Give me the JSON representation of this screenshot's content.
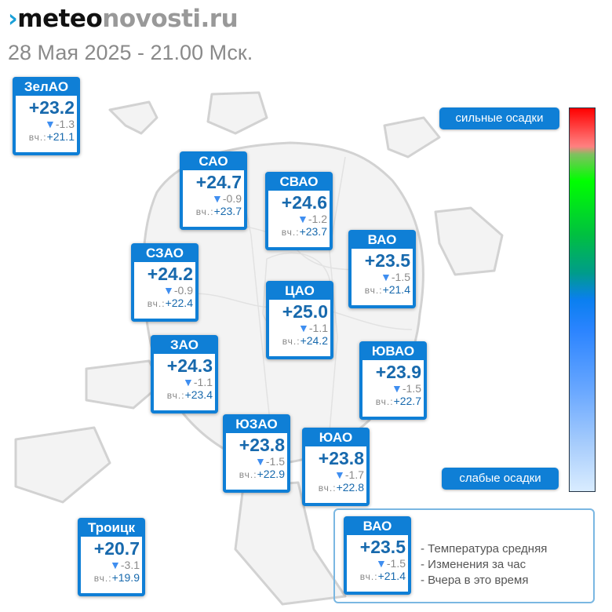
{
  "header": {
    "logo_mark": "›",
    "logo_part1": "meteo",
    "logo_part2": "novosti.ru",
    "date": "28 Мая 2025 - 21.00 Мск."
  },
  "yesterday_label": "вч.:",
  "down_arrow": "▼",
  "districts": [
    {
      "name": "ЗелАО",
      "temp": "+23.2",
      "change": "-1.3",
      "yesterday": "+21.1"
    },
    {
      "name": "САО",
      "temp": "+24.7",
      "change": "-0.9",
      "yesterday": "+23.7"
    },
    {
      "name": "СВАО",
      "temp": "+24.6",
      "change": "-1.2",
      "yesterday": "+23.7"
    },
    {
      "name": "ВАО",
      "temp": "+23.5",
      "change": "-1.5",
      "yesterday": "+21.4"
    },
    {
      "name": "СЗАО",
      "temp": "+24.2",
      "change": "-0.9",
      "yesterday": "+22.4"
    },
    {
      "name": "ЦАО",
      "temp": "+25.0",
      "change": "-1.1",
      "yesterday": "+24.2"
    },
    {
      "name": "ЗАО",
      "temp": "+24.3",
      "change": "-1.1",
      "yesterday": "+23.4"
    },
    {
      "name": "ЮВАО",
      "temp": "+23.9",
      "change": "-1.5",
      "yesterday": "+22.7"
    },
    {
      "name": "ЮЗАО",
      "temp": "+23.8",
      "change": "-1.5",
      "yesterday": "+22.9"
    },
    {
      "name": "ЮАО",
      "temp": "+23.8",
      "change": "-1.7",
      "yesterday": "+22.8"
    },
    {
      "name": "Троицк",
      "temp": "+20.7",
      "change": "-3.1",
      "yesterday": "+19.9"
    }
  ],
  "precip_scale": {
    "top_label": "сильные осадки",
    "bottom_label": "слабые осадки",
    "colors": [
      "#ff0000",
      "#ff8080",
      "#00ff00",
      "#009c8a",
      "#0a7ff0",
      "#d9ecff"
    ]
  },
  "legend": {
    "example": {
      "name": "ВАО",
      "temp": "+23.5",
      "change": "-1.5",
      "yesterday": "+21.4"
    },
    "lines": [
      "- Температура средняя",
      "- Изменения за час",
      "- Вчера в это время"
    ]
  },
  "colors": {
    "card": "#0f7fd6",
    "temp": "#1769ad",
    "arrow": "#3f8ef0"
  }
}
